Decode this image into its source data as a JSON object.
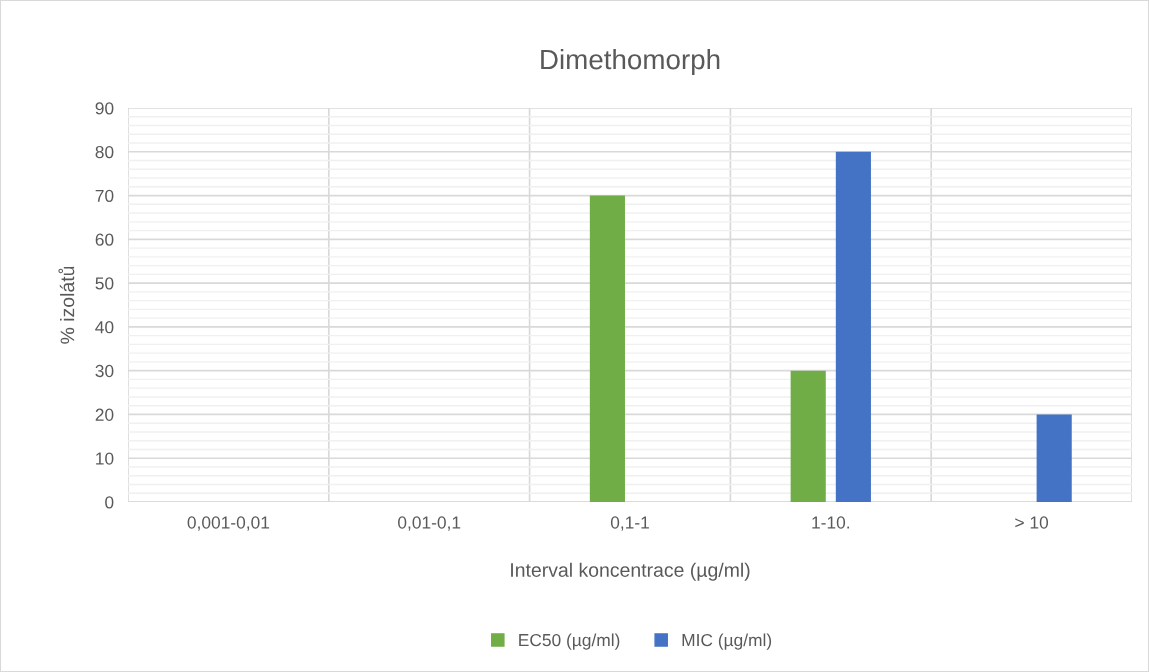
{
  "chart_data": {
    "type": "bar",
    "title": "Dimethomorph",
    "xlabel": "Interval koncentrace (µg/ml)",
    "ylabel": "% izolátů",
    "categories": [
      "0,001-0,01",
      "0,01-0,1",
      "0,1-1",
      "1-10.",
      "> 10"
    ],
    "series": [
      {
        "name": "EC50 (µg/ml)",
        "color": "#70ad47",
        "values": [
          0,
          0,
          70,
          30,
          0
        ]
      },
      {
        "name": "MIC (µg/ml)",
        "color": "#4472c4",
        "values": [
          0,
          0,
          0,
          80,
          20
        ]
      }
    ],
    "ylim": [
      0,
      90
    ],
    "yticks": [
      0,
      10,
      20,
      30,
      40,
      50,
      60,
      70,
      80,
      90
    ],
    "grid": true,
    "legend": "bottom"
  }
}
